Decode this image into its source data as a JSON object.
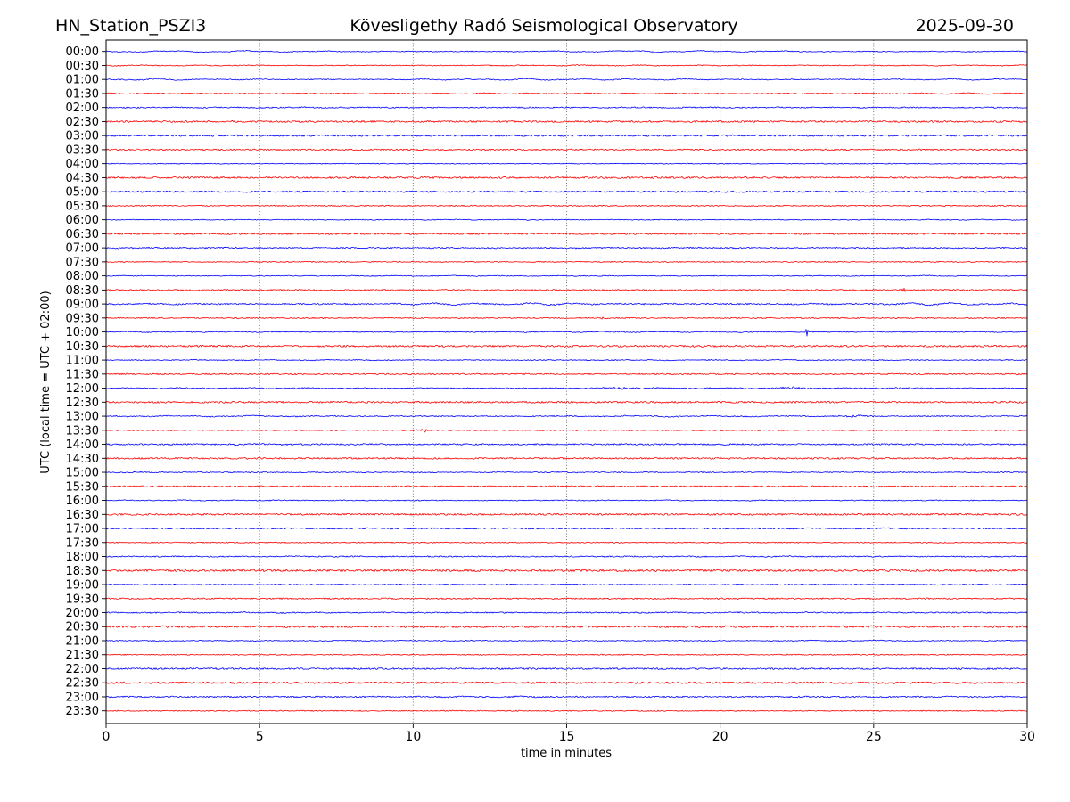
{
  "header": {
    "station": "HN_Station_PSZI3",
    "observatory": "Kövesligethy Radó Seismological Observatory",
    "date": "2025-09-30"
  },
  "colors": {
    "trace_blue": "#0000ff",
    "trace_red": "#ff0000",
    "grid": "#555555",
    "border": "#000000",
    "text": "#000000",
    "background": "#ffffff"
  },
  "chart_data": {
    "type": "line",
    "subtype": "helicorder-dayplot",
    "title": "Kövesligethy Radó Seismological Observatory",
    "xlabel": "time in minutes",
    "ylabel": "UTC (local time = UTC + 02:00)",
    "xlim": [
      0,
      30
    ],
    "x_ticks": [
      0,
      5,
      10,
      15,
      20,
      25,
      30
    ],
    "x_tick_labels": [
      "0",
      "5",
      "10",
      "15",
      "20",
      "25",
      "30"
    ],
    "grid_minutes": [
      5,
      10,
      15,
      20,
      25
    ],
    "grid_style": "vertical dotted",
    "minutes_per_row": 30,
    "rows_note": "48 half-hour traces, alternating blue/red; n = background noise amplitude (px), s = slow wiggle amplitude (px), e = events as [minute, width_minutes, amplitude_px]",
    "rows": [
      {
        "t": "00:00",
        "c": "B",
        "n": 0.5,
        "s": 1.0,
        "e": []
      },
      {
        "t": "00:30",
        "c": "R",
        "n": 0.55,
        "s": 0.5,
        "e": []
      },
      {
        "t": "01:00",
        "c": "B",
        "n": 0.55,
        "s": 1.0,
        "e": []
      },
      {
        "t": "01:30",
        "c": "R",
        "n": 0.55,
        "s": 0.6,
        "e": []
      },
      {
        "t": "02:00",
        "c": "B",
        "n": 0.7,
        "s": 0.3,
        "e": []
      },
      {
        "t": "02:30",
        "c": "R",
        "n": 1.05,
        "s": 0.2,
        "e": []
      },
      {
        "t": "03:00",
        "c": "B",
        "n": 1.05,
        "s": 0.2,
        "e": []
      },
      {
        "t": "03:30",
        "c": "R",
        "n": 0.85,
        "s": 0.2,
        "e": []
      },
      {
        "t": "04:00",
        "c": "B",
        "n": 0.5,
        "s": 0.2,
        "e": []
      },
      {
        "t": "04:30",
        "c": "R",
        "n": 1.05,
        "s": 0.2,
        "e": []
      },
      {
        "t": "05:00",
        "c": "B",
        "n": 0.95,
        "s": 0.2,
        "e": []
      },
      {
        "t": "05:30",
        "c": "R",
        "n": 0.65,
        "s": 0.2,
        "e": []
      },
      {
        "t": "06:00",
        "c": "B",
        "n": 0.5,
        "s": 0.3,
        "e": []
      },
      {
        "t": "06:30",
        "c": "R",
        "n": 1.0,
        "s": 0.2,
        "e": []
      },
      {
        "t": "07:00",
        "c": "B",
        "n": 0.75,
        "s": 0.3,
        "e": []
      },
      {
        "t": "07:30",
        "c": "R",
        "n": 0.6,
        "s": 0.2,
        "e": []
      },
      {
        "t": "08:00",
        "c": "B",
        "n": 0.5,
        "s": 0.3,
        "e": []
      },
      {
        "t": "08:30",
        "c": "R",
        "n": 0.8,
        "s": 0.2,
        "e": [
          [
            26.0,
            0.06,
            1.8
          ]
        ]
      },
      {
        "t": "09:00",
        "c": "B",
        "n": 0.8,
        "s": 1.1,
        "e": []
      },
      {
        "t": "09:30",
        "c": "R",
        "n": 0.65,
        "s": 0.2,
        "e": [
          [
            16.2,
            0.12,
            1.2
          ]
        ]
      },
      {
        "t": "10:00",
        "c": "B",
        "n": 0.55,
        "s": 0.5,
        "e": [
          [
            22.82,
            0.035,
            5.0
          ]
        ]
      },
      {
        "t": "10:30",
        "c": "R",
        "n": 1.05,
        "s": 0.2,
        "e": []
      },
      {
        "t": "11:00",
        "c": "B",
        "n": 0.55,
        "s": 0.4,
        "e": []
      },
      {
        "t": "11:30",
        "c": "R",
        "n": 0.8,
        "s": 0.2,
        "e": []
      },
      {
        "t": "12:00",
        "c": "B",
        "n": 0.6,
        "s": 0.5,
        "e": [
          [
            16.9,
            0.5,
            1.3
          ],
          [
            22.4,
            0.45,
            1.4
          ],
          [
            25.9,
            0.3,
            1.0
          ]
        ]
      },
      {
        "t": "12:30",
        "c": "R",
        "n": 1.05,
        "s": 0.2,
        "e": [
          [
            29.7,
            0.3,
            1.2
          ]
        ]
      },
      {
        "t": "13:00",
        "c": "B",
        "n": 0.65,
        "s": 0.7,
        "e": [
          [
            24.3,
            0.4,
            1.3
          ]
        ]
      },
      {
        "t": "13:30",
        "c": "R",
        "n": 0.6,
        "s": 0.2,
        "e": [
          [
            10.35,
            0.2,
            1.9
          ]
        ]
      },
      {
        "t": "14:00",
        "c": "B",
        "n": 0.85,
        "s": 0.3,
        "e": []
      },
      {
        "t": "14:30",
        "c": "R",
        "n": 0.95,
        "s": 0.2,
        "e": []
      },
      {
        "t": "15:00",
        "c": "B",
        "n": 0.6,
        "s": 0.3,
        "e": []
      },
      {
        "t": "15:30",
        "c": "R",
        "n": 0.85,
        "s": 0.2,
        "e": []
      },
      {
        "t": "16:00",
        "c": "B",
        "n": 0.55,
        "s": 0.3,
        "e": []
      },
      {
        "t": "16:30",
        "c": "R",
        "n": 1.05,
        "s": 0.2,
        "e": []
      },
      {
        "t": "17:00",
        "c": "B",
        "n": 0.75,
        "s": 0.3,
        "e": []
      },
      {
        "t": "17:30",
        "c": "R",
        "n": 0.6,
        "s": 0.2,
        "e": []
      },
      {
        "t": "18:00",
        "c": "B",
        "n": 0.7,
        "s": 0.3,
        "e": []
      },
      {
        "t": "18:30",
        "c": "R",
        "n": 1.25,
        "s": 0.2,
        "e": []
      },
      {
        "t": "19:00",
        "c": "B",
        "n": 0.55,
        "s": 0.3,
        "e": []
      },
      {
        "t": "19:30",
        "c": "R",
        "n": 0.8,
        "s": 0.2,
        "e": []
      },
      {
        "t": "20:00",
        "c": "B",
        "n": 0.7,
        "s": 0.4,
        "e": []
      },
      {
        "t": "20:30",
        "c": "R",
        "n": 1.25,
        "s": 0.2,
        "e": []
      },
      {
        "t": "21:00",
        "c": "B",
        "n": 0.55,
        "s": 0.3,
        "e": []
      },
      {
        "t": "21:30",
        "c": "R",
        "n": 0.6,
        "s": 0.2,
        "e": []
      },
      {
        "t": "22:00",
        "c": "B",
        "n": 0.95,
        "s": 0.2,
        "e": []
      },
      {
        "t": "22:30",
        "c": "R",
        "n": 1.15,
        "s": 0.2,
        "e": []
      },
      {
        "t": "23:00",
        "c": "B",
        "n": 0.8,
        "s": 0.4,
        "e": []
      },
      {
        "t": "23:30",
        "c": "R",
        "n": 0.6,
        "s": 0.2,
        "e": []
      }
    ]
  }
}
